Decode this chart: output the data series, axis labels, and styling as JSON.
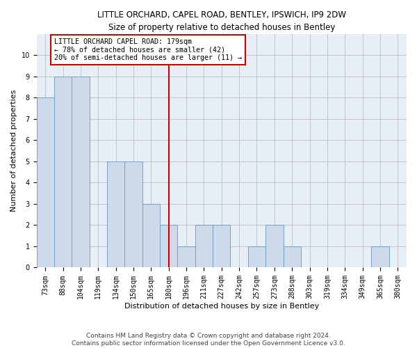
{
  "title": "LITTLE ORCHARD, CAPEL ROAD, BENTLEY, IPSWICH, IP9 2DW",
  "subtitle": "Size of property relative to detached houses in Bentley",
  "xlabel": "Distribution of detached houses by size in Bentley",
  "ylabel": "Number of detached properties",
  "bins": [
    "73sqm",
    "88sqm",
    "104sqm",
    "119sqm",
    "134sqm",
    "150sqm",
    "165sqm",
    "180sqm",
    "196sqm",
    "211sqm",
    "227sqm",
    "242sqm",
    "257sqm",
    "273sqm",
    "288sqm",
    "303sqm",
    "319sqm",
    "334sqm",
    "349sqm",
    "365sqm",
    "380sqm"
  ],
  "counts": [
    8,
    9,
    9,
    0,
    5,
    5,
    3,
    2,
    1,
    2,
    2,
    0,
    1,
    2,
    1,
    0,
    0,
    0,
    0,
    1,
    0
  ],
  "highlight_bin_index": 7,
  "bar_color": "#ccdaeb",
  "bar_edge_color": "#6699bb",
  "highlight_line_color": "#cc0000",
  "annotation_box_color": "#cc0000",
  "annotation_text": "LITTLE ORCHARD CAPEL ROAD: 179sqm\n← 78% of detached houses are smaller (42)\n20% of semi-detached houses are larger (11) →",
  "footer1": "Contains HM Land Registry data © Crown copyright and database right 2024.",
  "footer2": "Contains public sector information licensed under the Open Government Licence v3.0.",
  "ylim": [
    0,
    11
  ],
  "yticks": [
    0,
    1,
    2,
    3,
    4,
    5,
    6,
    7,
    8,
    9,
    10
  ],
  "title_fontsize": 8.5,
  "subtitle_fontsize": 8.5,
  "axis_label_fontsize": 8,
  "tick_fontsize": 7,
  "annot_fontsize": 7.2,
  "footer_fontsize": 6.5
}
